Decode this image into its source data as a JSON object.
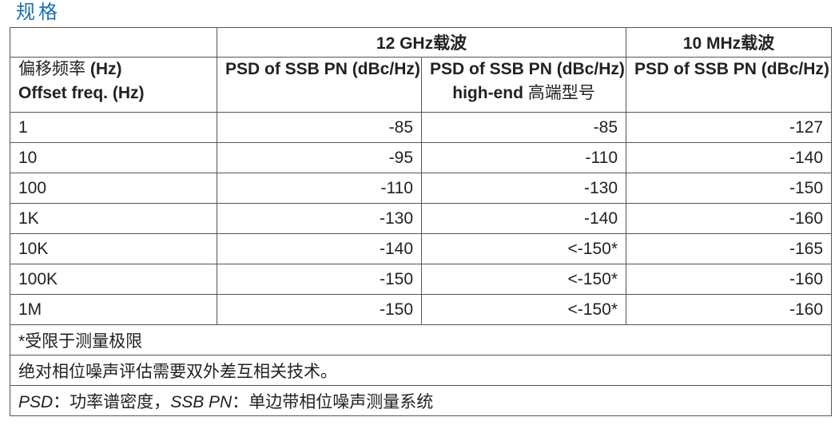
{
  "section_title": "规格",
  "header_groups": [
    "12 GHz载波",
    "10 MHz载波"
  ],
  "columns": {
    "offset_zh": "偏移频率",
    "offset_unit": "(Hz)",
    "offset_en": "Offset freq. (Hz)",
    "psd": "PSD of SSB PN (dBc/Hz)",
    "highend_en": "high-end",
    "highend_zh": "高端型号"
  },
  "rows": [
    {
      "offset": "1",
      "ghz": "-85",
      "ghz_high": "-85",
      "mhz": "-127"
    },
    {
      "offset": "10",
      "ghz": "-95",
      "ghz_high": "-110",
      "mhz": "-140"
    },
    {
      "offset": "100",
      "ghz": "-110",
      "ghz_high": "-130",
      "mhz": "-150"
    },
    {
      "offset": "1K",
      "ghz": "-130",
      "ghz_high": "-140",
      "mhz": "-160"
    },
    {
      "offset": "10K",
      "ghz": "-140",
      "ghz_high": "<-150*",
      "mhz": "-165"
    },
    {
      "offset": "100K",
      "ghz": "-150",
      "ghz_high": "<-150*",
      "mhz": "-160"
    },
    {
      "offset": "1M",
      "ghz": "-150",
      "ghz_high": "<-150*",
      "mhz": "-160"
    }
  ],
  "notes": {
    "limit": "*受限于测量极限",
    "absolute": "绝对相位噪声评估需要双外差互相关技术。",
    "psd_abbr": "PSD",
    "psd_def": "：功率谱密度，",
    "ssb_abbr": "SSB PN",
    "ssb_def": "：单边带相位噪声测量系统"
  },
  "colors": {
    "title": "#1a6fb5",
    "border": "#555555",
    "text": "#222222"
  }
}
